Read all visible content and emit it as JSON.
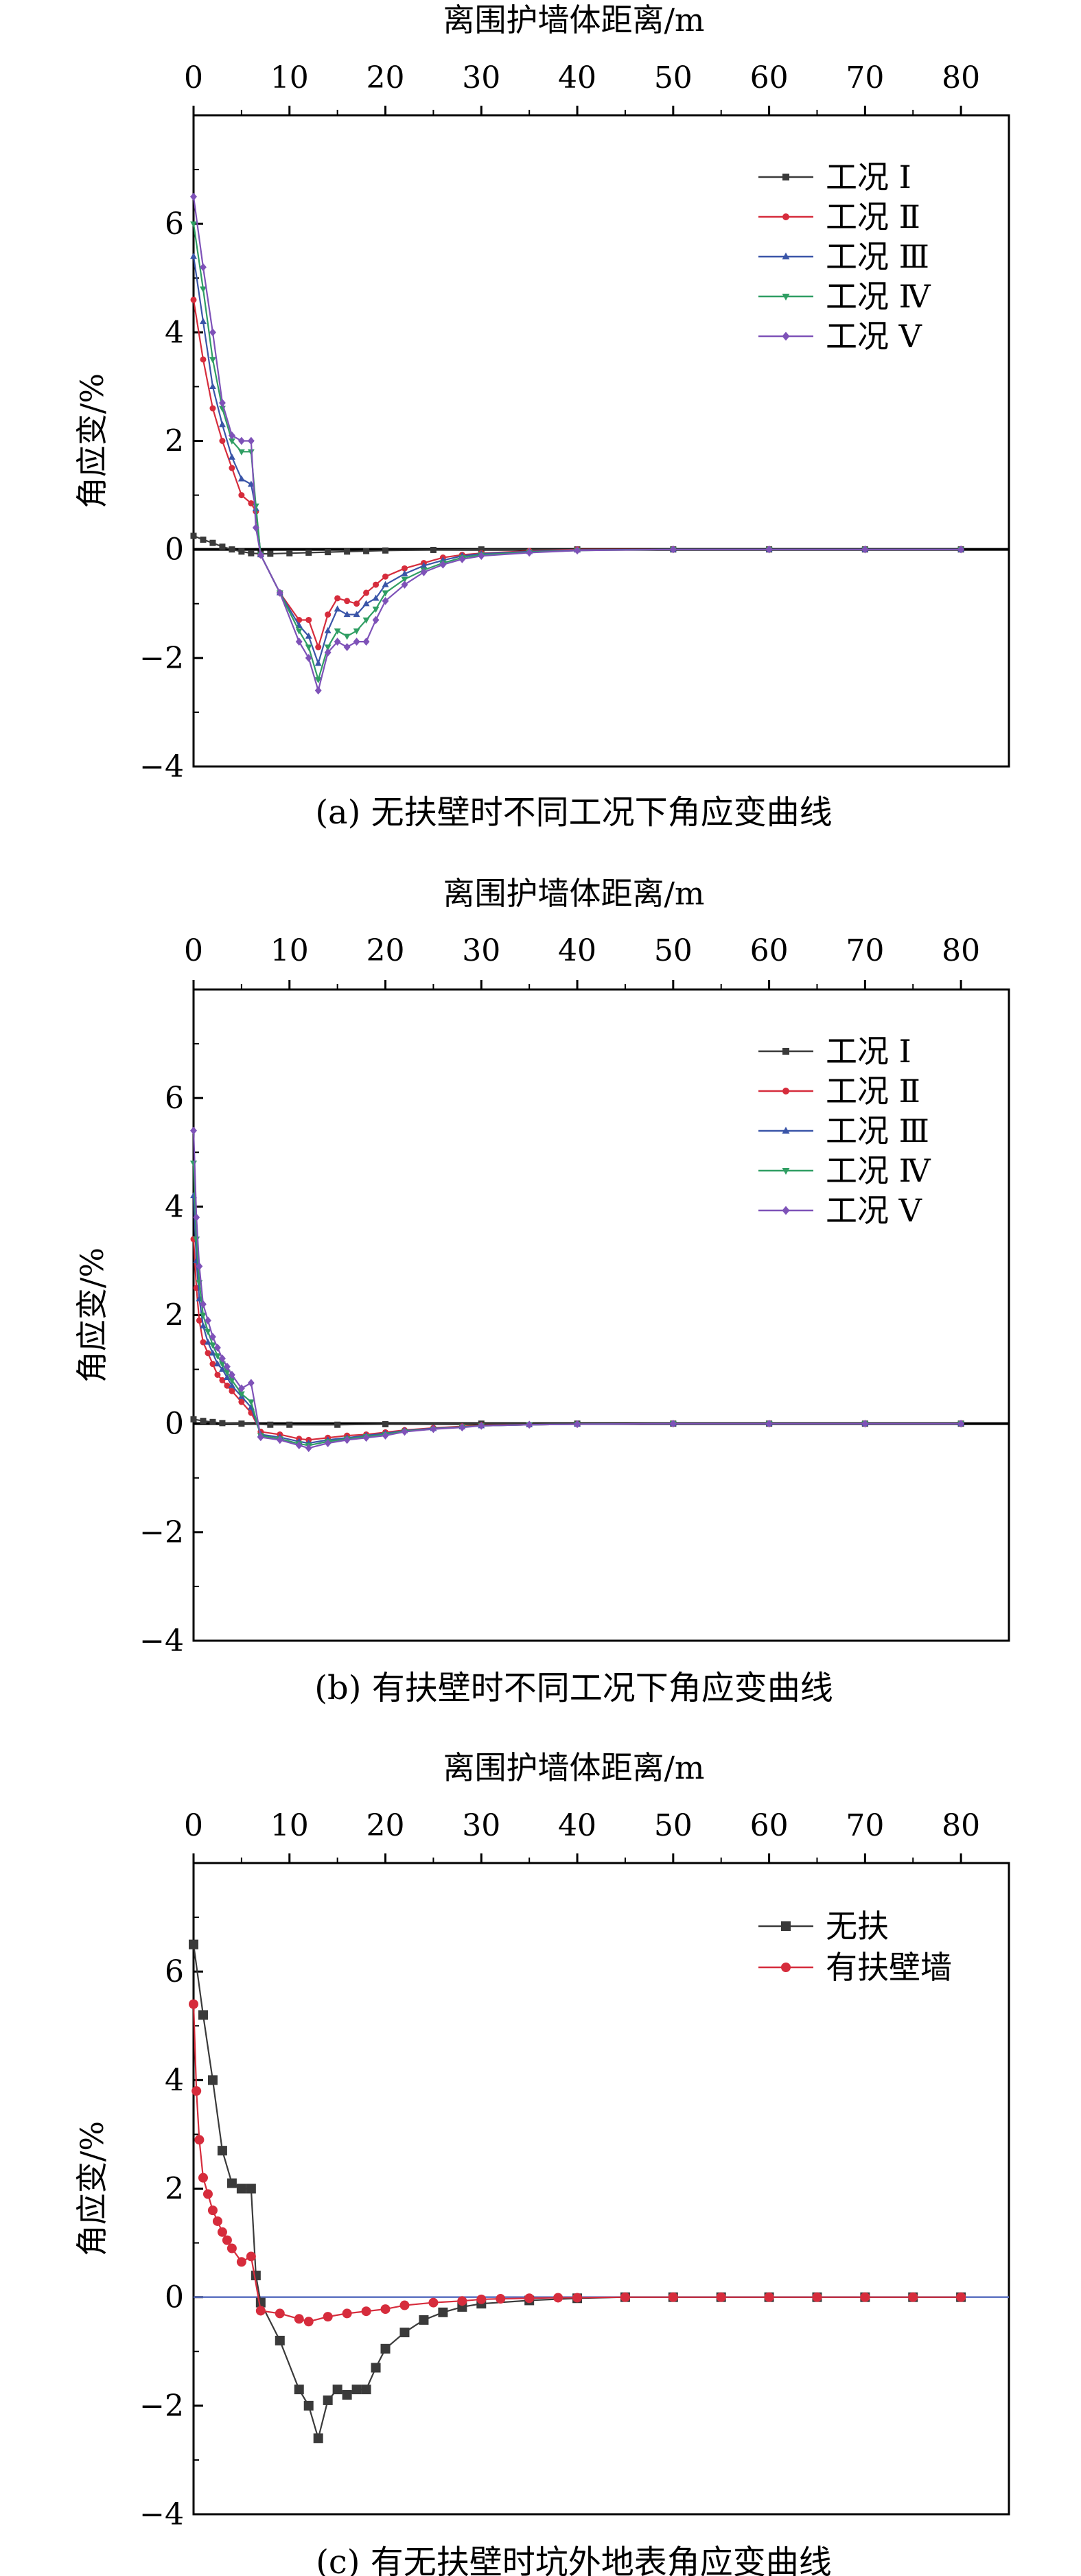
{
  "chart_data": [
    {
      "type": "line",
      "caption": "(a) 无扶壁时不同工况下角应变曲线",
      "xlabel": "离围护墙体距离/m",
      "ylabel": "角应变/%",
      "xlim": [
        0,
        85
      ],
      "ylim": [
        -4,
        8
      ],
      "x_ticks": [
        0,
        10,
        20,
        30,
        40,
        50,
        60,
        70,
        80
      ],
      "y_ticks": [
        -4,
        -2,
        0,
        2,
        4,
        6
      ],
      "x_tick_labels": [
        "0",
        "10",
        "20",
        "30",
        "40",
        "50",
        "60",
        "70",
        "80"
      ],
      "y_tick_labels": [
        "−4",
        "−2",
        "0",
        "2",
        "4",
        "6"
      ],
      "legend_position": "top-right",
      "series": [
        {
          "name": "工况 Ⅰ",
          "color": "#3a3a3a",
          "marker": "square",
          "x": [
            0,
            1,
            2,
            3,
            4,
            5,
            6,
            7,
            8,
            10,
            12,
            14,
            16,
            18,
            20,
            25,
            30,
            40,
            50,
            60,
            70,
            80
          ],
          "y": [
            0.25,
            0.18,
            0.12,
            0.05,
            0.0,
            -0.04,
            -0.07,
            -0.08,
            -0.08,
            -0.07,
            -0.06,
            -0.05,
            -0.04,
            -0.03,
            -0.02,
            -0.01,
            0.0,
            0.0,
            0.0,
            0.0,
            0.0,
            0.0
          ]
        },
        {
          "name": "工况 Ⅱ",
          "color": "#d62c3c",
          "marker": "circle",
          "x": [
            0,
            1,
            2,
            3,
            4,
            5,
            6,
            6.5,
            7,
            9,
            11,
            12,
            13,
            14,
            15,
            16,
            17,
            18,
            19,
            20,
            22,
            24,
            26,
            28,
            30,
            35,
            40,
            50,
            60,
            70,
            80
          ],
          "y": [
            4.6,
            3.5,
            2.6,
            2.0,
            1.5,
            1.0,
            0.85,
            0.7,
            -0.1,
            -0.8,
            -1.3,
            -1.3,
            -1.8,
            -1.2,
            -0.9,
            -0.95,
            -1.0,
            -0.8,
            -0.65,
            -0.5,
            -0.35,
            -0.25,
            -0.15,
            -0.1,
            -0.07,
            -0.03,
            0.0,
            0.0,
            0.0,
            0.0,
            0.0
          ]
        },
        {
          "name": "工况 Ⅲ",
          "color": "#3a55a8",
          "marker": "triangle",
          "x": [
            0,
            1,
            2,
            3,
            4,
            5,
            6,
            6.5,
            7,
            9,
            11,
            12,
            13,
            14,
            15,
            16,
            17,
            18,
            19,
            20,
            22,
            24,
            26,
            28,
            30,
            35,
            40,
            50,
            60,
            70,
            80
          ],
          "y": [
            5.4,
            4.2,
            3.0,
            2.3,
            1.7,
            1.3,
            1.2,
            0.75,
            -0.1,
            -0.8,
            -1.4,
            -1.6,
            -2.1,
            -1.5,
            -1.1,
            -1.2,
            -1.2,
            -1.0,
            -0.9,
            -0.65,
            -0.45,
            -0.3,
            -0.2,
            -0.12,
            -0.08,
            -0.04,
            -0.01,
            0.0,
            0.0,
            0.0,
            0.0
          ]
        },
        {
          "name": "工况 Ⅳ",
          "color": "#2f9e63",
          "marker": "triangle-down",
          "x": [
            0,
            1,
            2,
            3,
            4,
            5,
            6,
            6.5,
            7,
            9,
            11,
            12,
            13,
            14,
            15,
            16,
            17,
            18,
            19,
            20,
            22,
            24,
            26,
            28,
            30,
            35,
            40,
            50,
            60,
            70,
            80
          ],
          "y": [
            6.0,
            4.8,
            3.5,
            2.6,
            2.0,
            1.8,
            1.8,
            0.8,
            -0.1,
            -0.8,
            -1.5,
            -1.8,
            -2.4,
            -1.8,
            -1.5,
            -1.6,
            -1.5,
            -1.3,
            -1.1,
            -0.8,
            -0.55,
            -0.38,
            -0.25,
            -0.15,
            -0.1,
            -0.05,
            -0.02,
            0.0,
            0.0,
            0.0,
            0.0
          ]
        },
        {
          "name": "工况 Ⅴ",
          "color": "#7e52b8",
          "marker": "diamond",
          "x": [
            0,
            1,
            2,
            3,
            4,
            5,
            6,
            6.5,
            7,
            9,
            11,
            12,
            13,
            14,
            15,
            16,
            17,
            18,
            19,
            20,
            22,
            24,
            26,
            28,
            30,
            35,
            40,
            50,
            60,
            70,
            80
          ],
          "y": [
            6.5,
            5.2,
            4.0,
            2.7,
            2.1,
            2.0,
            2.0,
            0.4,
            -0.1,
            -0.8,
            -1.7,
            -2.0,
            -2.6,
            -1.9,
            -1.7,
            -1.8,
            -1.7,
            -1.7,
            -1.3,
            -0.95,
            -0.65,
            -0.42,
            -0.28,
            -0.18,
            -0.12,
            -0.06,
            -0.02,
            0.0,
            0.0,
            0.0,
            0.0
          ]
        }
      ]
    },
    {
      "type": "line",
      "caption": "(b) 有扶壁时不同工况下角应变曲线",
      "xlabel": "离围护墙体距离/m",
      "ylabel": "角应变/%",
      "xlim": [
        0,
        85
      ],
      "ylim": [
        -4,
        8
      ],
      "x_ticks": [
        0,
        10,
        20,
        30,
        40,
        50,
        60,
        70,
        80
      ],
      "y_ticks": [
        -4,
        -2,
        0,
        2,
        4,
        6
      ],
      "x_tick_labels": [
        "0",
        "10",
        "20",
        "30",
        "40",
        "50",
        "60",
        "70",
        "80"
      ],
      "y_tick_labels": [
        "−4",
        "−2",
        "0",
        "2",
        "4",
        "6"
      ],
      "legend_position": "top-right",
      "series": [
        {
          "name": "工况 Ⅰ",
          "color": "#3a3a3a",
          "marker": "square",
          "x": [
            0,
            1,
            2,
            3,
            5,
            8,
            10,
            15,
            20,
            30,
            40,
            50,
            60,
            70,
            80
          ],
          "y": [
            0.08,
            0.05,
            0.03,
            0.01,
            0.0,
            -0.02,
            -0.02,
            -0.02,
            -0.01,
            0.0,
            0.0,
            0.0,
            0.0,
            0.0,
            0.0
          ]
        },
        {
          "name": "工况 Ⅱ",
          "color": "#d62c3c",
          "marker": "circle",
          "x": [
            0,
            0.3,
            0.6,
            1,
            1.5,
            2,
            2.5,
            3,
            3.5,
            4,
            5,
            6,
            7,
            9,
            11,
            12,
            14,
            16,
            18,
            20,
            22,
            25,
            28,
            30,
            35,
            40,
            50,
            60,
            70,
            80
          ],
          "y": [
            3.4,
            2.5,
            1.9,
            1.5,
            1.3,
            1.1,
            0.9,
            0.8,
            0.7,
            0.6,
            0.4,
            0.2,
            -0.15,
            -0.2,
            -0.28,
            -0.3,
            -0.26,
            -0.22,
            -0.2,
            -0.16,
            -0.12,
            -0.08,
            -0.05,
            -0.03,
            -0.02,
            -0.01,
            0.0,
            0.0,
            0.0,
            0.0
          ]
        },
        {
          "name": "工况 Ⅲ",
          "color": "#3a55a8",
          "marker": "triangle",
          "x": [
            0,
            0.3,
            0.6,
            1,
            1.5,
            2,
            2.5,
            3,
            3.5,
            4,
            5,
            6,
            7,
            9,
            11,
            12,
            14,
            16,
            18,
            20,
            22,
            25,
            28,
            30,
            35,
            40,
            50,
            60,
            70,
            80
          ],
          "y": [
            4.2,
            3.0,
            2.3,
            1.8,
            1.5,
            1.3,
            1.1,
            1.0,
            0.85,
            0.7,
            0.5,
            0.3,
            -0.2,
            -0.25,
            -0.33,
            -0.36,
            -0.3,
            -0.26,
            -0.22,
            -0.18,
            -0.13,
            -0.09,
            -0.06,
            -0.04,
            -0.02,
            -0.01,
            0.0,
            0.0,
            0.0,
            0.0
          ]
        },
        {
          "name": "工况 Ⅳ",
          "color": "#2f9e63",
          "marker": "triangle-down",
          "x": [
            0,
            0.3,
            0.6,
            1,
            1.5,
            2,
            2.5,
            3,
            3.5,
            4,
            5,
            6,
            7,
            9,
            11,
            12,
            14,
            16,
            18,
            20,
            22,
            25,
            28,
            30,
            35,
            40,
            50,
            60,
            70,
            80
          ],
          "y": [
            4.8,
            3.4,
            2.6,
            2.0,
            1.7,
            1.45,
            1.25,
            1.1,
            0.95,
            0.8,
            0.55,
            0.4,
            -0.22,
            -0.28,
            -0.37,
            -0.4,
            -0.33,
            -0.28,
            -0.24,
            -0.2,
            -0.14,
            -0.1,
            -0.06,
            -0.04,
            -0.02,
            -0.01,
            0.0,
            0.0,
            0.0,
            0.0
          ]
        },
        {
          "name": "工况 Ⅴ",
          "color": "#7e52b8",
          "marker": "diamond",
          "x": [
            0,
            0.3,
            0.6,
            1,
            1.5,
            2,
            2.5,
            3,
            3.5,
            4,
            5,
            6,
            7,
            9,
            11,
            12,
            14,
            16,
            18,
            20,
            22,
            25,
            28,
            30,
            35,
            40,
            50,
            60,
            70,
            80
          ],
          "y": [
            5.4,
            3.8,
            2.9,
            2.2,
            1.9,
            1.6,
            1.4,
            1.2,
            1.05,
            0.9,
            0.65,
            0.75,
            -0.25,
            -0.3,
            -0.4,
            -0.45,
            -0.36,
            -0.3,
            -0.26,
            -0.22,
            -0.15,
            -0.1,
            -0.07,
            -0.04,
            -0.02,
            -0.01,
            0.0,
            0.0,
            0.0,
            0.0
          ]
        }
      ]
    },
    {
      "type": "line",
      "caption": "(c) 有无扶壁时坑外地表角应变曲线",
      "xlabel": "离围护墙体距离/m",
      "ylabel": "角应变/%",
      "xlim": [
        0,
        85
      ],
      "ylim": [
        -4,
        8
      ],
      "x_ticks": [
        0,
        10,
        20,
        30,
        40,
        50,
        60,
        70,
        80
      ],
      "y_ticks": [
        -4,
        -2,
        0,
        2,
        4,
        6
      ],
      "x_tick_labels": [
        "0",
        "10",
        "20",
        "30",
        "40",
        "50",
        "60",
        "70",
        "80"
      ],
      "y_tick_labels": [
        "−4",
        "−2",
        "0",
        "2",
        "4",
        "6"
      ],
      "legend_position": "top-right",
      "series": [
        {
          "name": "无扶",
          "color": "#3a3a3a",
          "marker": "square",
          "x": [
            0,
            1,
            2,
            3,
            4,
            5,
            6,
            6.5,
            7,
            9,
            11,
            12,
            13,
            14,
            15,
            16,
            17,
            18,
            19,
            20,
            22,
            24,
            26,
            28,
            30,
            35,
            40,
            45,
            50,
            55,
            60,
            65,
            70,
            75,
            80
          ],
          "y": [
            6.5,
            5.2,
            4.0,
            2.7,
            2.1,
            2.0,
            2.0,
            0.4,
            -0.1,
            -0.8,
            -1.7,
            -2.0,
            -2.6,
            -1.9,
            -1.7,
            -1.8,
            -1.7,
            -1.7,
            -1.3,
            -0.95,
            -0.65,
            -0.42,
            -0.28,
            -0.18,
            -0.12,
            -0.06,
            -0.02,
            0.0,
            0.0,
            0.0,
            0.0,
            0.0,
            0.0,
            0.0,
            0.0
          ]
        },
        {
          "name": "有扶壁墙",
          "color": "#d62c3c",
          "marker": "circle",
          "x": [
            0,
            0.3,
            0.6,
            1,
            1.5,
            2,
            2.5,
            3,
            3.5,
            4,
            5,
            6,
            7,
            9,
            11,
            12,
            14,
            16,
            18,
            20,
            22,
            25,
            28,
            30,
            32,
            35,
            38,
            40,
            45,
            50,
            55,
            60,
            65,
            70,
            75,
            80
          ],
          "y": [
            5.4,
            3.8,
            2.9,
            2.2,
            1.9,
            1.6,
            1.4,
            1.2,
            1.05,
            0.9,
            0.65,
            0.75,
            -0.25,
            -0.3,
            -0.4,
            -0.45,
            -0.36,
            -0.3,
            -0.26,
            -0.22,
            -0.15,
            -0.1,
            -0.07,
            -0.04,
            -0.03,
            -0.02,
            -0.01,
            -0.01,
            0.0,
            0.0,
            0.0,
            0.0,
            0.0,
            0.0,
            0.0,
            0.0
          ]
        }
      ]
    }
  ]
}
